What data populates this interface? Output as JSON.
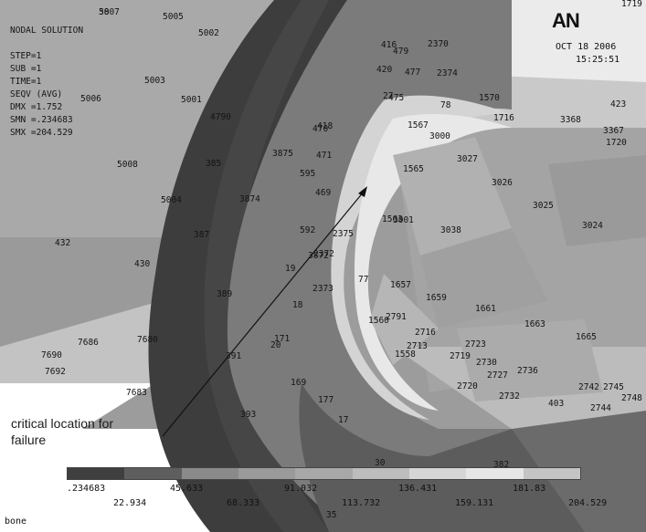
{
  "logo": "AN",
  "info": {
    "title": "NODAL SOLUTION",
    "step": "STEP=1",
    "sub": "SUB =1",
    "time": "TIME=1",
    "seqv": "SEQV    (AVG)",
    "dmx": "DMX =1.752",
    "smn": "SMN =.234683",
    "smx": "SMX =204.529"
  },
  "date": "OCT 18 2006",
  "time": "15:25:51",
  "annotation": {
    "line1": "critical location for",
    "line2": "failure"
  },
  "legend": {
    "colors": [
      "#3f3f3f",
      "#5e5e5e",
      "#8a8a8a",
      "#9a9a9a",
      "#a8a8a8",
      "#bdbdbd",
      "#d6d6d6",
      "#e6e6e6",
      "#c4c4c4"
    ],
    "labels": [
      ".234683",
      "22.934",
      "45.633",
      "68.333",
      "91.032",
      "113.732",
      "136.431",
      "159.131",
      "181.83",
      "204.529"
    ]
  },
  "footer": "bone",
  "node_labels": [
    "5007",
    "5005",
    "5002",
    "5003",
    "5001",
    "5006",
    "5008",
    "5004",
    "4790",
    "1570",
    "1567",
    "1565",
    "1563",
    "3000",
    "3001",
    "3024",
    "3025",
    "3026",
    "3027",
    "3038",
    "3367",
    "3368",
    "1720",
    "1719",
    "1716",
    "423",
    "432",
    "430",
    "479",
    "477",
    "2370",
    "2374",
    "2373",
    "2375",
    "2372",
    "1657",
    "1659",
    "1661",
    "1663",
    "1665",
    "1560",
    "1558",
    "2791",
    "2716",
    "2713",
    "2719",
    "2723",
    "2730",
    "2736",
    "2720",
    "2727",
    "2732",
    "2742",
    "2745",
    "2744",
    "2748",
    "403",
    "7686",
    "7680",
    "7690",
    "7692",
    "7683",
    "385",
    "387",
    "389",
    "393",
    "391",
    "171",
    "169",
    "177",
    "17",
    "20",
    "18",
    "19",
    "77",
    "78",
    "470",
    "471",
    "475",
    "469",
    "595",
    "592",
    "3872",
    "3875",
    "3874",
    "382",
    "30",
    "35",
    "27",
    "420",
    "416",
    "418",
    "38"
  ]
}
